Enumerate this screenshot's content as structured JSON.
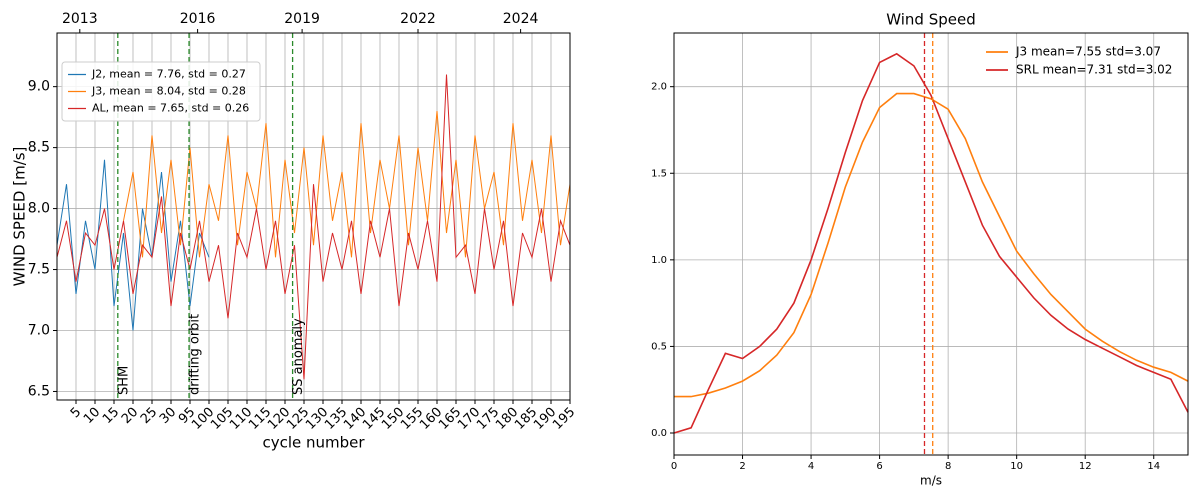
{
  "chart_data": [
    {
      "type": "line",
      "ylabel": "WIND SPEED [m/s]",
      "xlabel": "cycle number",
      "xlim": [
        0,
        27
      ],
      "ylim": [
        6.43,
        9.44
      ],
      "grid": true,
      "legend": "upper left",
      "xticks": [
        {
          "value": 1,
          "label": "5"
        },
        {
          "value": 2,
          "label": "10"
        },
        {
          "value": 3,
          "label": "15"
        },
        {
          "value": 4,
          "label": "20"
        },
        {
          "value": 5,
          "label": "25"
        },
        {
          "value": 6,
          "label": "30"
        },
        {
          "value": 7,
          "label": "95"
        },
        {
          "value": 8,
          "label": "100"
        },
        {
          "value": 9,
          "label": "105"
        },
        {
          "value": 10,
          "label": "110"
        },
        {
          "value": 11,
          "label": "115"
        },
        {
          "value": 12,
          "label": "120"
        },
        {
          "value": 13,
          "label": "125"
        },
        {
          "value": 14,
          "label": "130"
        },
        {
          "value": 15,
          "label": "135"
        },
        {
          "value": 16,
          "label": "140"
        },
        {
          "value": 17,
          "label": "145"
        },
        {
          "value": 18,
          "label": "150"
        },
        {
          "value": 19,
          "label": "155"
        },
        {
          "value": 20,
          "label": "160"
        },
        {
          "value": 21,
          "label": "165"
        },
        {
          "value": 22,
          "label": "170"
        },
        {
          "value": 23,
          "label": "175"
        },
        {
          "value": 24,
          "label": "180"
        },
        {
          "value": 25,
          "label": "185"
        },
        {
          "value": 26,
          "label": "190"
        },
        {
          "value": 27,
          "label": "195"
        }
      ],
      "x2ticks": [
        {
          "value": 1.2,
          "label": "2013"
        },
        {
          "value": 7.4,
          "label": "2016"
        },
        {
          "value": 12.9,
          "label": "2019"
        },
        {
          "value": 19.0,
          "label": "2022"
        },
        {
          "value": 24.4,
          "label": "2024"
        }
      ],
      "yticks": [
        6.5,
        {
          "value": 7,
          "label": "7.0"
        },
        7.5,
        {
          "value": 8,
          "label": "8.0"
        },
        8.5,
        {
          "value": 9,
          "label": "9.0"
        }
      ],
      "vlines": [
        {
          "x": 3.2,
          "label": "SHM",
          "color": "#2a8a2a"
        },
        {
          "x": 6.95,
          "label": "drifting orbit",
          "color": "#2a8a2a"
        },
        {
          "x": 12.4,
          "label": "SS anomaly",
          "color": "#2a8a2a"
        }
      ],
      "series": [
        {
          "name": "J2, mean = 7.76, std = 0.27",
          "color": "#1f77b4",
          "x": [
            0,
            0.5,
            1,
            1.5,
            2,
            2.5,
            3,
            3.5,
            4,
            4.5,
            5,
            5.5,
            6,
            6.5,
            7,
            7.5,
            8
          ],
          "values": [
            7.7,
            8.2,
            7.3,
            7.9,
            7.5,
            8.4,
            7.2,
            7.8,
            7.0,
            8.0,
            7.6,
            8.3,
            7.4,
            7.9,
            7.2,
            7.8,
            7.6
          ]
        },
        {
          "name": "J3, mean = 8.04, std = 0.28",
          "color": "#ff7f0e",
          "x": [
            3.5,
            4,
            4.5,
            5,
            5.5,
            6,
            6.5,
            7,
            7.5,
            8,
            8.5,
            9,
            9.5,
            10,
            10.5,
            11,
            11.5,
            12,
            12.5,
            13,
            13.5,
            14,
            14.5,
            15,
            15.5,
            16,
            16.5,
            17,
            17.5,
            18,
            18.5,
            19,
            19.5,
            20,
            20.5,
            21,
            21.5,
            22,
            22.5,
            23,
            23.5,
            24,
            24.5,
            25,
            25.5,
            26,
            26.5,
            27
          ],
          "values": [
            7.9,
            8.3,
            7.6,
            8.6,
            7.8,
            8.4,
            7.7,
            8.5,
            7.6,
            8.2,
            7.9,
            8.6,
            7.7,
            8.3,
            8.0,
            8.7,
            7.6,
            8.4,
            7.8,
            8.5,
            7.7,
            8.6,
            7.9,
            8.3,
            7.6,
            8.7,
            7.8,
            8.4,
            8.0,
            8.6,
            7.7,
            8.5,
            7.9,
            8.8,
            7.8,
            8.4,
            7.6,
            8.6,
            8.0,
            8.3,
            7.7,
            8.7,
            7.9,
            8.4,
            7.8,
            8.6,
            7.7,
            8.2
          ]
        },
        {
          "name": "AL, mean = 7.65, std = 0.26",
          "color": "#d62728",
          "x": [
            0,
            0.5,
            1,
            1.5,
            2,
            2.5,
            3,
            3.5,
            4,
            4.5,
            5,
            5.5,
            6,
            6.5,
            7,
            7.5,
            8,
            8.5,
            9,
            9.5,
            10,
            10.5,
            11,
            11.5,
            12,
            12.5,
            13,
            13.5,
            14,
            14.5,
            15,
            15.5,
            16,
            16.5,
            17,
            17.5,
            18,
            18.5,
            19,
            19.5,
            20,
            20.5,
            21,
            21.5,
            22,
            22.5,
            23,
            23.5,
            24,
            24.5,
            25,
            25.5,
            26,
            26.5,
            27
          ],
          "values": [
            7.6,
            7.9,
            7.4,
            7.8,
            7.7,
            8.0,
            7.5,
            7.9,
            7.3,
            7.7,
            7.6,
            8.1,
            7.2,
            7.8,
            7.5,
            7.9,
            7.4,
            7.7,
            7.1,
            7.8,
            7.6,
            8.0,
            7.5,
            7.9,
            7.3,
            7.7,
            6.6,
            8.2,
            7.4,
            7.8,
            7.5,
            7.9,
            7.3,
            7.9,
            7.6,
            8.0,
            7.2,
            7.8,
            7.5,
            7.9,
            7.4,
            9.1,
            7.6,
            7.7,
            7.3,
            8.0,
            7.5,
            7.9,
            7.2,
            7.8,
            7.6,
            8.0,
            7.4,
            7.9,
            7.7
          ]
        }
      ]
    },
    {
      "type": "line",
      "title": "Wind Speed",
      "xlabel": "m/s",
      "xlim": [
        0,
        15
      ],
      "ylim": [
        -0.127,
        2.31
      ],
      "grid": true,
      "legend": "upper right",
      "xticks": [
        0,
        2,
        4,
        6,
        8,
        10,
        12,
        14
      ],
      "yticks": [
        {
          "value": 0,
          "label": "0.0"
        },
        {
          "value": 0.5,
          "label": "0.5"
        },
        {
          "value": 1,
          "label": "1.0"
        },
        {
          "value": 1.5,
          "label": "1.5"
        },
        {
          "value": 2,
          "label": "2.0"
        }
      ],
      "vlines": [
        {
          "x": 7.31,
          "color": "#d62728"
        },
        {
          "x": 7.55,
          "color": "#ff7f0e"
        }
      ],
      "series": [
        {
          "name": "J3  mean=7.55 std=3.07",
          "color": "#ff7f0e",
          "x": [
            0,
            0.5,
            1,
            1.5,
            2,
            2.5,
            3,
            3.5,
            4,
            4.5,
            5,
            5.5,
            6,
            6.5,
            7,
            7.5,
            8,
            8.5,
            9,
            9.5,
            10,
            10.5,
            11,
            11.5,
            12,
            12.5,
            13,
            13.5,
            14,
            14.5,
            15
          ],
          "values": [
            0.21,
            0.21,
            0.23,
            0.26,
            0.3,
            0.36,
            0.45,
            0.58,
            0.8,
            1.1,
            1.42,
            1.68,
            1.88,
            1.96,
            1.96,
            1.93,
            1.87,
            1.7,
            1.45,
            1.25,
            1.05,
            0.92,
            0.8,
            0.7,
            0.6,
            0.53,
            0.47,
            0.42,
            0.38,
            0.35,
            0.3
          ]
        },
        {
          "name": "SRL mean=7.31 std=3.02",
          "color": "#d62728",
          "x": [
            0,
            0.5,
            1,
            1.5,
            2,
            2.5,
            3,
            3.5,
            4,
            4.5,
            5,
            5.5,
            6,
            6.5,
            7,
            7.5,
            8,
            8.5,
            9,
            9.5,
            10,
            10.5,
            11,
            11.5,
            12,
            12.5,
            13,
            13.5,
            14,
            14.5,
            15
          ],
          "values": [
            0.0,
            0.03,
            0.25,
            0.46,
            0.43,
            0.5,
            0.6,
            0.75,
            1.0,
            1.3,
            1.62,
            1.92,
            2.14,
            2.19,
            2.12,
            1.95,
            1.7,
            1.45,
            1.2,
            1.02,
            0.9,
            0.78,
            0.68,
            0.6,
            0.54,
            0.49,
            0.44,
            0.39,
            0.35,
            0.31,
            0.12
          ]
        }
      ]
    }
  ]
}
